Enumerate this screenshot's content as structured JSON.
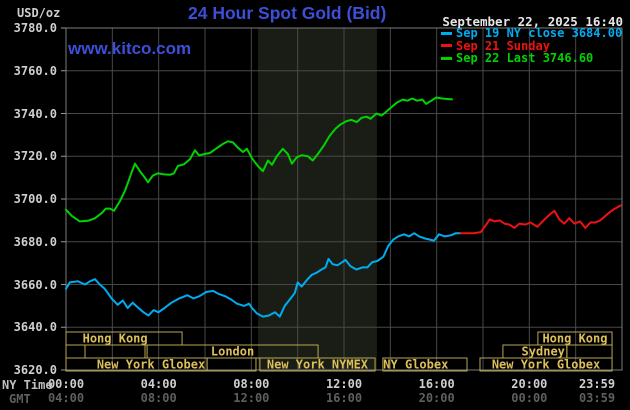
{
  "header": {
    "unit_label": "USD/oz",
    "title": "24 Hour Spot Gold (Bid)",
    "watermark": "www.kitco.com",
    "datetime": "September 22, 2025 16:40"
  },
  "legend": [
    {
      "label": "Sep 19 NY close 3684.00",
      "color": "#00acf0"
    },
    {
      "label": "Sep 21 Sunday",
      "color": "#ee1212"
    },
    {
      "label": "Sep 22 Last 3746.60",
      "color": "#00d300"
    }
  ],
  "colors": {
    "background": "#000000",
    "grid": "#484848",
    "border": "#7d7d7d",
    "band": "#1a1d15",
    "session_border": "#b9a750",
    "session_text": "#dcc05a",
    "axis_text": "#cfcfcf",
    "gmt_text": "#5f5f5f",
    "title_blue": "#3d4fd8"
  },
  "y_axis": {
    "labels": [
      "3780.0",
      "3760.0",
      "3740.0",
      "3720.0",
      "3700.0",
      "3680.0",
      "3660.0",
      "3640.0",
      "3620.0"
    ],
    "min": 3620,
    "max": 3780,
    "step": 20
  },
  "x_axis": {
    "ny_label": "NY Time",
    "gmt_label": "GMT",
    "ticks": [
      {
        "h": 0,
        "ny": "00:00",
        "gmt": "04:00"
      },
      {
        "h": 4,
        "ny": "04:00",
        "gmt": "08:00"
      },
      {
        "h": 8,
        "ny": "08:00",
        "gmt": "12:00"
      },
      {
        "h": 12,
        "ny": "12:00",
        "gmt": "16:00"
      },
      {
        "h": 16,
        "ny": "16:00",
        "gmt": "20:00"
      },
      {
        "h": 20,
        "ny": "20:00",
        "gmt": "00:00"
      },
      {
        "h": 23.983,
        "ny": "23:59",
        "gmt": "03:59",
        "align": "right"
      }
    ]
  },
  "sessions": {
    "rows": [
      [
        {
          "s": 0,
          "e": 5.01,
          "label": "Hong Kong",
          "label_h": 2.12
        },
        {
          "s": 20.37,
          "e": 23.57,
          "label": "Hong Kong"
        }
      ],
      [
        {
          "s": 0,
          "e": 0.82
        },
        {
          "s": 0.82,
          "e": 3.41
        },
        {
          "s": 3.5,
          "e": 10.88,
          "label": "London"
        },
        {
          "s": 18.86,
          "e": 21.62,
          "label": "Sydney",
          "label_h": 20.6
        },
        {
          "s": 21.62,
          "e": 23.57
        }
      ],
      [
        {
          "s": 0,
          "e": 6.09,
          "label": "New York Globex",
          "label_h": 3.67
        },
        {
          "s": 6.09,
          "e": 8.2
        },
        {
          "s": 8.37,
          "e": 13.34,
          "label": "New York NYMEX"
        },
        {
          "s": 13.68,
          "e": 17.31,
          "label": "NY Globex",
          "label_h": 15.1
        },
        {
          "s": 17.87,
          "e": 23.57,
          "label": "New York Globex"
        }
      ]
    ]
  },
  "chart_data": {
    "type": "line",
    "title": "24 Hour Spot Gold (Bid)",
    "xlabel": "NY Time (hours)",
    "ylabel": "USD/oz",
    "xlim": [
      0,
      24
    ],
    "ylim": [
      3620,
      3780
    ],
    "y_tick_step": 20,
    "x_gridline_step_hours": 2,
    "grid": true,
    "legend_position": "top-right",
    "highlight_band": {
      "x_from": 8.29,
      "x_to": 13.42
    },
    "series": [
      {
        "name": "Sep 19 NY close",
        "close": 3684.0,
        "color": "#00acf0",
        "points": [
          [
            0,
            3658
          ],
          [
            0.17,
            3661
          ],
          [
            0.52,
            3661.5
          ],
          [
            0.82,
            3660
          ],
          [
            1.03,
            3661.5
          ],
          [
            1.25,
            3662.5
          ],
          [
            1.46,
            3660
          ],
          [
            1.67,
            3658
          ],
          [
            1.97,
            3653.5
          ],
          [
            2.23,
            3650.5
          ],
          [
            2.45,
            3652.5
          ],
          [
            2.66,
            3649
          ],
          [
            2.88,
            3651.5
          ],
          [
            3.13,
            3649
          ],
          [
            3.35,
            3647
          ],
          [
            3.56,
            3645.5
          ],
          [
            3.78,
            3648
          ],
          [
            3.99,
            3647
          ],
          [
            4.25,
            3649
          ],
          [
            4.55,
            3651.5
          ],
          [
            4.89,
            3653.5
          ],
          [
            5.24,
            3655
          ],
          [
            5.5,
            3653.5
          ],
          [
            5.75,
            3654.5
          ],
          [
            6.05,
            3656.5
          ],
          [
            6.35,
            3657
          ],
          [
            6.61,
            3655.5
          ],
          [
            6.87,
            3654.5
          ],
          [
            7.13,
            3653
          ],
          [
            7.38,
            3651
          ],
          [
            7.69,
            3650
          ],
          [
            7.9,
            3651
          ],
          [
            8.03,
            3649
          ],
          [
            8.24,
            3646.5
          ],
          [
            8.5,
            3645
          ],
          [
            8.76,
            3645.5
          ],
          [
            9.02,
            3647
          ],
          [
            9.23,
            3645
          ],
          [
            9.44,
            3650
          ],
          [
            9.66,
            3653
          ],
          [
            9.87,
            3656
          ],
          [
            10,
            3661
          ],
          [
            10.17,
            3659
          ],
          [
            10.39,
            3662
          ],
          [
            10.6,
            3664.5
          ],
          [
            10.82,
            3665.5
          ],
          [
            11.03,
            3667
          ],
          [
            11.2,
            3668
          ],
          [
            11.33,
            3672
          ],
          [
            11.51,
            3669.5
          ],
          [
            11.72,
            3669
          ],
          [
            11.93,
            3670.5
          ],
          [
            12.06,
            3671.5
          ],
          [
            12.28,
            3668.5
          ],
          [
            12.54,
            3667
          ],
          [
            12.79,
            3668
          ],
          [
            13.01,
            3668
          ],
          [
            13.22,
            3670.5
          ],
          [
            13.44,
            3671
          ],
          [
            13.7,
            3673
          ],
          [
            13.91,
            3678
          ],
          [
            14.13,
            3681
          ],
          [
            14.34,
            3682.5
          ],
          [
            14.6,
            3683.5
          ],
          [
            14.81,
            3682.5
          ],
          [
            15.03,
            3684
          ],
          [
            15.24,
            3682.5
          ],
          [
            15.5,
            3681.5
          ],
          [
            15.71,
            3681
          ],
          [
            15.88,
            3680.5
          ],
          [
            16.1,
            3683.5
          ],
          [
            16.35,
            3682.5
          ],
          [
            16.61,
            3683
          ],
          [
            16.83,
            3684
          ],
          [
            17.04,
            3684
          ]
        ]
      },
      {
        "name": "Sep 21 Sunday",
        "color": "#ee1212",
        "points": [
          [
            17.04,
            3684
          ],
          [
            17.6,
            3684
          ],
          [
            17.9,
            3684.5
          ],
          [
            18.11,
            3687.5
          ],
          [
            18.29,
            3690.5
          ],
          [
            18.5,
            3689.5
          ],
          [
            18.72,
            3690
          ],
          [
            18.93,
            3688.5
          ],
          [
            19.14,
            3688
          ],
          [
            19.36,
            3686.5
          ],
          [
            19.57,
            3688.5
          ],
          [
            19.83,
            3688
          ],
          [
            20.05,
            3689
          ],
          [
            20.35,
            3687
          ],
          [
            20.61,
            3690
          ],
          [
            20.91,
            3693
          ],
          [
            21.08,
            3694.5
          ],
          [
            21.29,
            3690.5
          ],
          [
            21.51,
            3688.5
          ],
          [
            21.72,
            3691
          ],
          [
            21.94,
            3688.5
          ],
          [
            22.19,
            3689.5
          ],
          [
            22.41,
            3686.5
          ],
          [
            22.63,
            3689
          ],
          [
            22.84,
            3689
          ],
          [
            23.06,
            3690
          ],
          [
            23.27,
            3692
          ],
          [
            23.49,
            3694
          ],
          [
            23.7,
            3695.5
          ],
          [
            23.95,
            3697
          ]
        ]
      },
      {
        "name": "Sep 22 Last",
        "last": 3746.6,
        "color": "#00d300",
        "points": [
          [
            0,
            3695
          ],
          [
            0.26,
            3692
          ],
          [
            0.6,
            3689.5
          ],
          [
            0.95,
            3689.8
          ],
          [
            1.25,
            3691
          ],
          [
            1.55,
            3693.5
          ],
          [
            1.72,
            3695.5
          ],
          [
            1.9,
            3695.5
          ],
          [
            2.07,
            3694.5
          ],
          [
            2.33,
            3699
          ],
          [
            2.55,
            3704
          ],
          [
            2.72,
            3709
          ],
          [
            2.85,
            3713
          ],
          [
            2.98,
            3716.5
          ],
          [
            3.19,
            3713
          ],
          [
            3.37,
            3710.5
          ],
          [
            3.54,
            3707.8
          ],
          [
            3.75,
            3711
          ],
          [
            3.97,
            3712
          ],
          [
            4.23,
            3711.5
          ],
          [
            4.49,
            3711.3
          ],
          [
            4.66,
            3712
          ],
          [
            4.83,
            3715.5
          ],
          [
            5.09,
            3716.2
          ],
          [
            5.35,
            3718.6
          ],
          [
            5.57,
            3722.8
          ],
          [
            5.74,
            3720.4
          ],
          [
            5.96,
            3721
          ],
          [
            6.21,
            3721.5
          ],
          [
            6.47,
            3723.5
          ],
          [
            6.73,
            3725.5
          ],
          [
            6.99,
            3727
          ],
          [
            7.21,
            3726.5
          ],
          [
            7.42,
            3724
          ],
          [
            7.64,
            3722
          ],
          [
            7.81,
            3723.5
          ],
          [
            8.03,
            3719
          ],
          [
            8.28,
            3715.5
          ],
          [
            8.5,
            3713
          ],
          [
            8.72,
            3718
          ],
          [
            8.89,
            3716
          ],
          [
            9.1,
            3720
          ],
          [
            9.36,
            3723.5
          ],
          [
            9.58,
            3721
          ],
          [
            9.75,
            3716.5
          ],
          [
            9.96,
            3719.5
          ],
          [
            10.18,
            3720.5
          ],
          [
            10.44,
            3720
          ],
          [
            10.65,
            3718
          ],
          [
            10.87,
            3721
          ],
          [
            11.13,
            3725
          ],
          [
            11.38,
            3729.5
          ],
          [
            11.64,
            3733
          ],
          [
            11.86,
            3735
          ],
          [
            12.12,
            3736.5
          ],
          [
            12.33,
            3737
          ],
          [
            12.55,
            3736
          ],
          [
            12.76,
            3738
          ],
          [
            12.97,
            3738.5
          ],
          [
            13.15,
            3737.5
          ],
          [
            13.4,
            3740
          ],
          [
            13.62,
            3739
          ],
          [
            13.84,
            3741
          ],
          [
            14.05,
            3743
          ],
          [
            14.27,
            3745
          ],
          [
            14.53,
            3746.5
          ],
          [
            14.74,
            3746
          ],
          [
            14.95,
            3747
          ],
          [
            15.16,
            3746
          ],
          [
            15.38,
            3746.5
          ],
          [
            15.55,
            3744.5
          ],
          [
            15.77,
            3746
          ],
          [
            15.98,
            3747.5
          ],
          [
            16.23,
            3747
          ],
          [
            16.45,
            3746.8
          ],
          [
            16.66,
            3746.6
          ]
        ]
      }
    ]
  }
}
